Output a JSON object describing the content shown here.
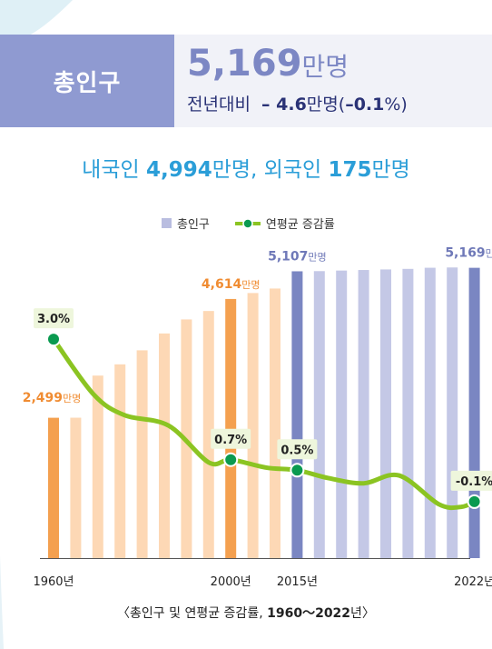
{
  "header": {
    "label": "총인구",
    "total_number": "5,169",
    "total_unit": "만명",
    "yoy_label": "전년대비",
    "yoy_number": "– 4.6",
    "yoy_unit": "만명",
    "yoy_pct_open": "(",
    "yoy_pct_value": "–0.1",
    "yoy_pct_close": "%)"
  },
  "subtitle": {
    "part1": "내국인 ",
    "domestic_number": "4,994",
    "part2": "만명, 외국인 ",
    "foreign_number": "175",
    "part3": "만명"
  },
  "caption": {
    "prefix": "〈총인구 및 연평균 증감률, ",
    "range": "1960～2022",
    "suffix": "년〉"
  },
  "colors": {
    "bar_light_orange": "#fdd8b5",
    "bar_orange": "#f4a04f",
    "bar_light_purple": "#c4c8e6",
    "bar_dark_purple": "#7a86c2",
    "line_green": "#8bc422",
    "dot_green": "#0a9a50",
    "label_orange": "#f08c32",
    "label_purple": "#6f79b8"
  },
  "chart_data": {
    "type": "bar+line",
    "legend": [
      {
        "name": "총인구",
        "kind": "bar"
      },
      {
        "name": "연평균 증감률",
        "kind": "line"
      }
    ],
    "legend_position": "top",
    "bars": [
      {
        "value": 2499,
        "color": "orange",
        "label_number": "2,499",
        "label_unit": "만명"
      },
      {
        "value": 2500,
        "color": "light_orange"
      },
      {
        "value": 3250,
        "color": "light_orange"
      },
      {
        "value": 3450,
        "color": "light_orange"
      },
      {
        "value": 3700,
        "color": "light_orange"
      },
      {
        "value": 4000,
        "color": "light_orange"
      },
      {
        "value": 4250,
        "color": "light_orange"
      },
      {
        "value": 4400,
        "color": "light_orange"
      },
      {
        "value": 4614,
        "color": "orange",
        "label_number": "4,614",
        "label_unit": "만명"
      },
      {
        "value": 4720,
        "color": "light_orange"
      },
      {
        "value": 4800,
        "color": "light_orange"
      },
      {
        "value": 5107,
        "color": "dark_purple",
        "label_number": "5,107",
        "label_unit": "만명"
      },
      {
        "value": 5110,
        "color": "light_purple"
      },
      {
        "value": 5120,
        "color": "light_purple"
      },
      {
        "value": 5130,
        "color": "light_purple"
      },
      {
        "value": 5140,
        "color": "light_purple"
      },
      {
        "value": 5150,
        "color": "light_purple"
      },
      {
        "value": 5170,
        "color": "light_purple"
      },
      {
        "value": 5175,
        "color": "light_purple"
      },
      {
        "value": 5169,
        "color": "dark_purple",
        "label_number": "5,169",
        "label_unit": "만명"
      }
    ],
    "ylim": [
      0,
      5600
    ],
    "x_tick_labels": [
      {
        "bar_index": 0,
        "text": "1960년"
      },
      {
        "bar_index": 8,
        "text": "2000년"
      },
      {
        "bar_index": 11,
        "text": "2015년"
      },
      {
        "bar_index": 19,
        "text": "2022년"
      }
    ],
    "growth_rate_curve": {
      "rate_min": -0.5,
      "rate_max": 3.4,
      "points": [
        {
          "pos": 0.0,
          "rate": 3.0,
          "label": "3.0%",
          "marker": true
        },
        {
          "pos": 1.8,
          "rate": 1.95
        },
        {
          "pos": 3.2,
          "rate": 1.55
        },
        {
          "pos": 5.2,
          "rate": 1.35
        },
        {
          "pos": 7.0,
          "rate": 0.65
        },
        {
          "pos": 8.0,
          "rate": 0.7,
          "label": "0.7%",
          "marker": true
        },
        {
          "pos": 9.6,
          "rate": 0.55
        },
        {
          "pos": 11.0,
          "rate": 0.5,
          "label": "0.5%",
          "marker": true
        },
        {
          "pos": 12.4,
          "rate": 0.35
        },
        {
          "pos": 14.0,
          "rate": 0.25
        },
        {
          "pos": 15.6,
          "rate": 0.4
        },
        {
          "pos": 17.4,
          "rate": -0.15
        },
        {
          "pos": 18.4,
          "rate": -0.2
        },
        {
          "pos": 19.0,
          "rate": -0.1,
          "label": "-0.1%",
          "marker": true
        }
      ]
    }
  }
}
